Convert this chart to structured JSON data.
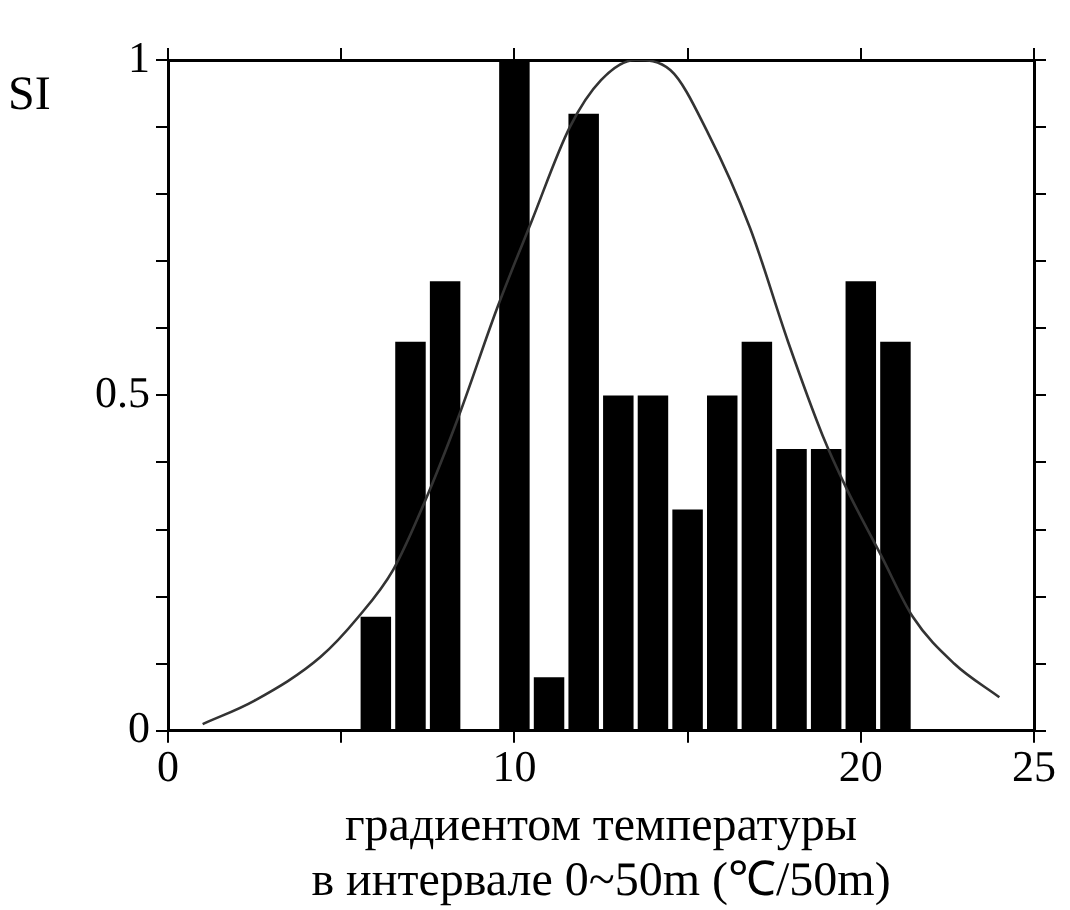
{
  "chart_data": {
    "type": "histogram",
    "xlabel": "градиентом температуры\nв интервале 0~50m (℃/50m)",
    "ylabel": "SI",
    "xlim": [
      0,
      25
    ],
    "xticks": [
      0,
      {
        "value": 5,
        "label": null
      },
      10,
      {
        "value": 15,
        "label": null
      },
      20,
      25
    ],
    "ylim": [
      0,
      1
    ],
    "yticks": [
      0,
      {
        "value": 0.1,
        "label": null
      },
      {
        "value": 0.2,
        "label": null
      },
      {
        "value": 0.3,
        "label": null
      },
      {
        "value": 0.4,
        "label": null
      },
      0.5,
      {
        "value": 0.6,
        "label": null
      },
      {
        "value": 0.7,
        "label": null
      },
      {
        "value": 0.8,
        "label": null
      },
      {
        "value": 0.9,
        "label": null
      },
      1
    ],
    "grid": false,
    "legend": false,
    "series": [
      {
        "color": "#000000",
        "bins": [
          5.5,
          6.5,
          7.5,
          8.5,
          9.5,
          10.5,
          11.5,
          12.5,
          13.5,
          14.5,
          15.5,
          16.5,
          17.5,
          18.5,
          19.5,
          20.5,
          21.5
        ],
        "values": [
          0.17,
          0.58,
          0.67,
          0,
          1,
          0.08,
          0.92,
          0.5,
          0.5,
          0.33,
          0.5,
          0.58,
          0.42,
          0.42,
          0.67,
          0.58
        ]
      },
      {
        "type": "line",
        "color": "#333333",
        "marker": "none",
        "x": [
          1,
          2.5,
          4.4,
          5.5,
          6.5,
          7.4,
          8.4,
          9.5,
          10.5,
          11.6,
          12.5,
          13.5,
          14.5,
          15.6,
          16.8,
          17.9,
          18.9,
          19.6,
          20.6,
          21.5,
          22.7,
          24
        ],
        "values": [
          0.01,
          0.045,
          0.11,
          0.17,
          0.24,
          0.34,
          0.47,
          0.63,
          0.76,
          0.9,
          0.97,
          1,
          0.985,
          0.89,
          0.75,
          0.58,
          0.44,
          0.36,
          0.26,
          0.17,
          0.1,
          0.05
        ]
      }
    ]
  }
}
